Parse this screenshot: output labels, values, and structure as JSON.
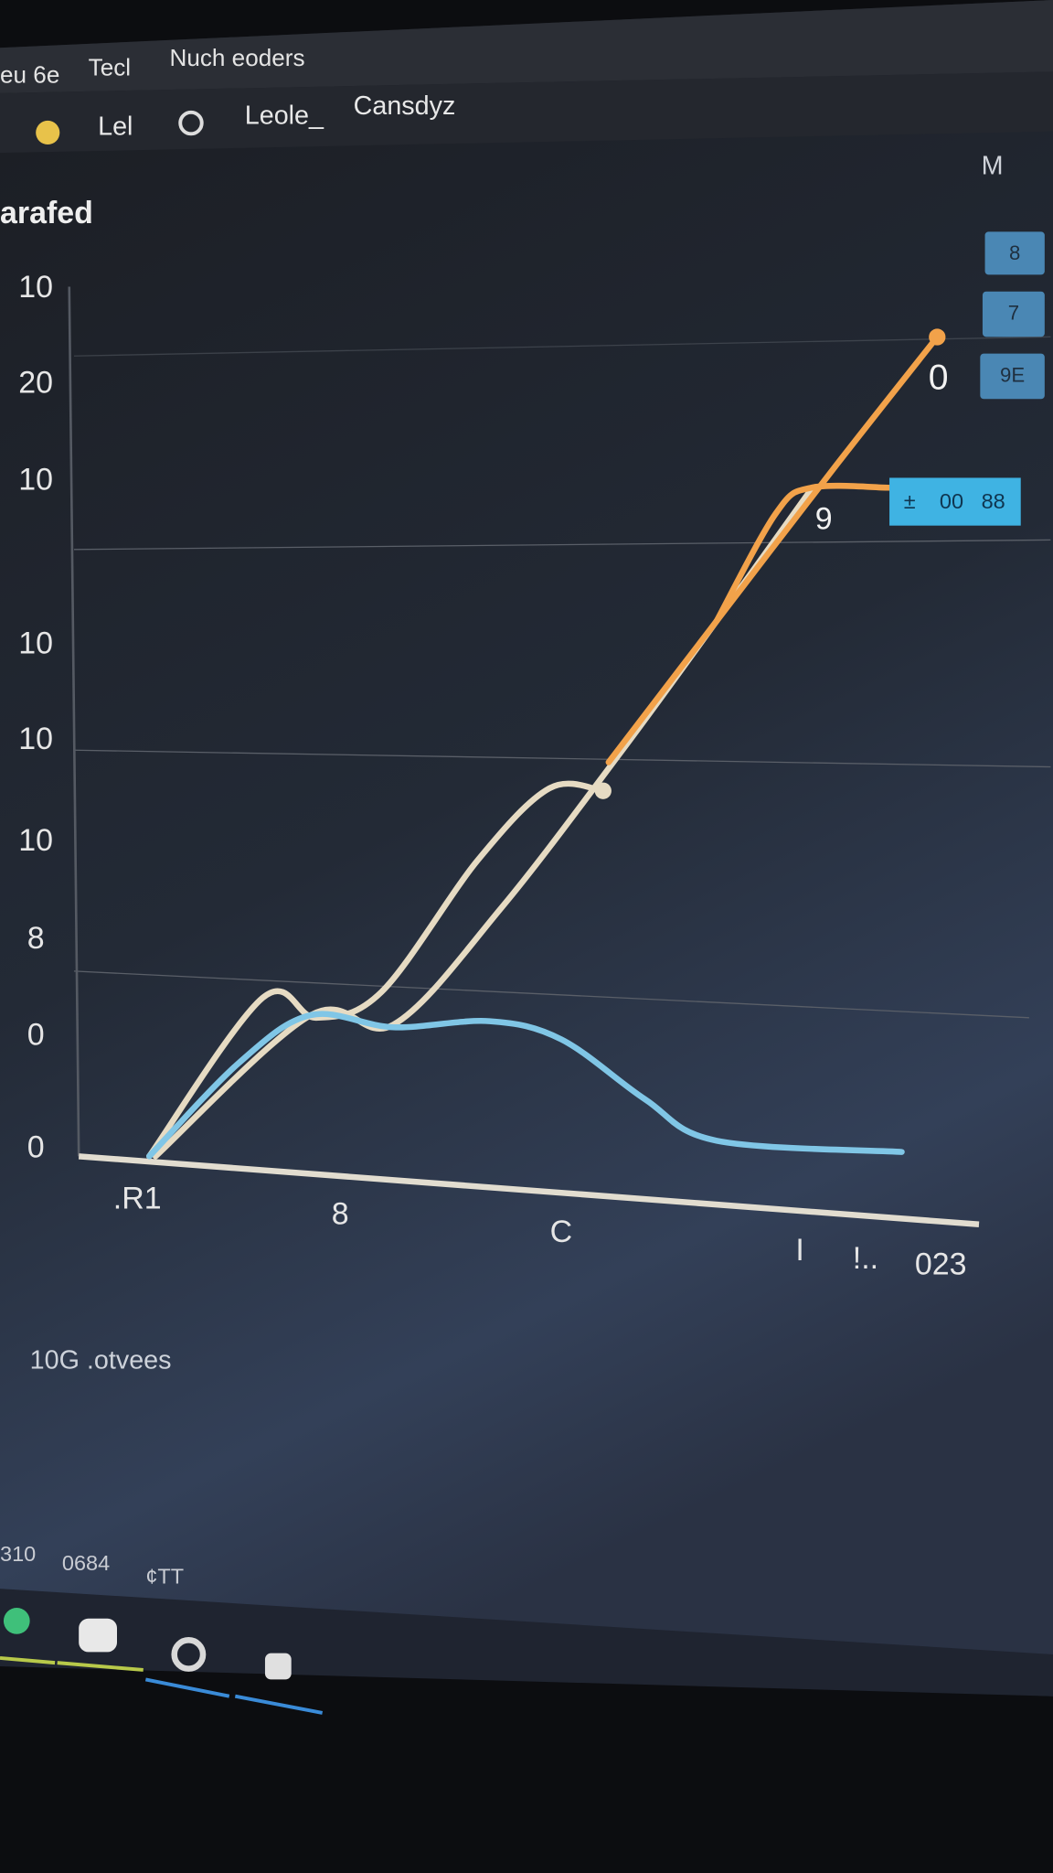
{
  "menu": [
    "eu 6e",
    "Tecl",
    "Nuch eoders"
  ],
  "toolbar": [
    "Lel",
    "Leole_",
    "Cansdyz"
  ],
  "corner_label": "M",
  "side_buttons": [
    "8",
    "7",
    "9E"
  ],
  "chart_data": {
    "type": "line",
    "title": "arafed",
    "y_axis_labels": [
      "10",
      "20",
      "10",
      "10",
      "10",
      "10",
      "8",
      "0",
      "0"
    ],
    "x_axis_labels": [
      ".R1",
      "8",
      "C",
      "I",
      "!..",
      "023"
    ],
    "xlim": [
      0,
      100
    ],
    "ylim": [
      0,
      100
    ],
    "series": [
      {
        "color": "#e6dbc3",
        "x": [
          0,
          14.4,
          21.2,
          29.5,
          41.7,
          50.8,
          57.6
        ],
        "values": [
          0,
          18.3,
          16,
          19,
          34.2,
          42.5,
          42.2
        ]
      },
      {
        "color": "#e6dbc3",
        "x": [
          0.8,
          20.5,
          31,
          44.7,
          59.8,
          72,
          84
        ],
        "values": [
          0,
          16.3,
          15.2,
          28.7,
          46.6,
          61.8,
          77
        ]
      },
      {
        "color": "#f2a24a",
        "x": [
          58.3,
          72,
          87.1,
          100
        ],
        "values": [
          45.5,
          61.8,
          79.7,
          94.6
        ]
      },
      {
        "color": "#f2a24a",
        "x": [
          72,
          79.5,
          84,
          93.9
        ],
        "values": [
          61.8,
          74.2,
          77.2,
          77.2
        ]
      },
      {
        "color": "#80c6e6",
        "x": [
          0,
          11.4,
          20.5,
          31,
          43.2,
          52.3,
          62.9,
          72,
          95.5
        ],
        "values": [
          0,
          10.8,
          16.3,
          14.9,
          15.6,
          13.5,
          6.6,
          1.8,
          0.5
        ]
      }
    ],
    "point_labels": [
      "0",
      "9"
    ],
    "badge": [
      "±",
      "00",
      "88"
    ]
  },
  "caption": "10G .otvees",
  "status": [
    "310",
    "0684",
    "¢TT"
  ]
}
